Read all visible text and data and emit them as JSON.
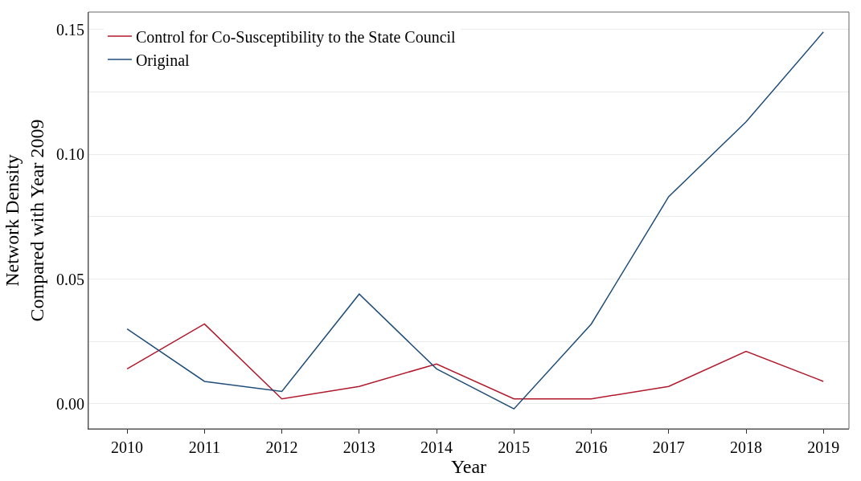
{
  "chart_data": {
    "type": "line",
    "xlabel": "Year",
    "ylabel": "Network Density\nCompared with Year 2009",
    "x": [
      2010,
      2011,
      2012,
      2013,
      2014,
      2015,
      2016,
      2017,
      2018,
      2019
    ],
    "series": [
      {
        "name": "Control for Co-Susceptibility to the State Council",
        "color": "#b2182b",
        "values": [
          0.014,
          0.032,
          0.002,
          0.007,
          0.016,
          0.002,
          0.002,
          0.007,
          0.021,
          0.009
        ]
      },
      {
        "name": "Original",
        "color": "#1f4e79",
        "values": [
          0.03,
          0.009,
          0.005,
          0.044,
          0.014,
          -0.002,
          0.032,
          0.083,
          0.113,
          0.149
        ]
      }
    ],
    "xlim": [
      2009.5,
      2019.33
    ],
    "xticks": [
      2010,
      2011,
      2012,
      2013,
      2014,
      2015,
      2016,
      2017,
      2018,
      2019
    ],
    "ylim": [
      -0.01,
      0.157
    ],
    "yticks": [
      {
        "value": 0,
        "label": "0.00"
      },
      {
        "value": 0.025,
        "label": null
      },
      {
        "value": 0.05,
        "label": "0.05"
      },
      {
        "value": 0.075,
        "label": null
      },
      {
        "value": 0.1,
        "label": "0.10"
      },
      {
        "value": 0.125,
        "label": null
      },
      {
        "value": 0.15,
        "label": "0.15"
      }
    ],
    "grid": "y",
    "legend": "top left",
    "marker": "none",
    "line_style": "solid"
  }
}
